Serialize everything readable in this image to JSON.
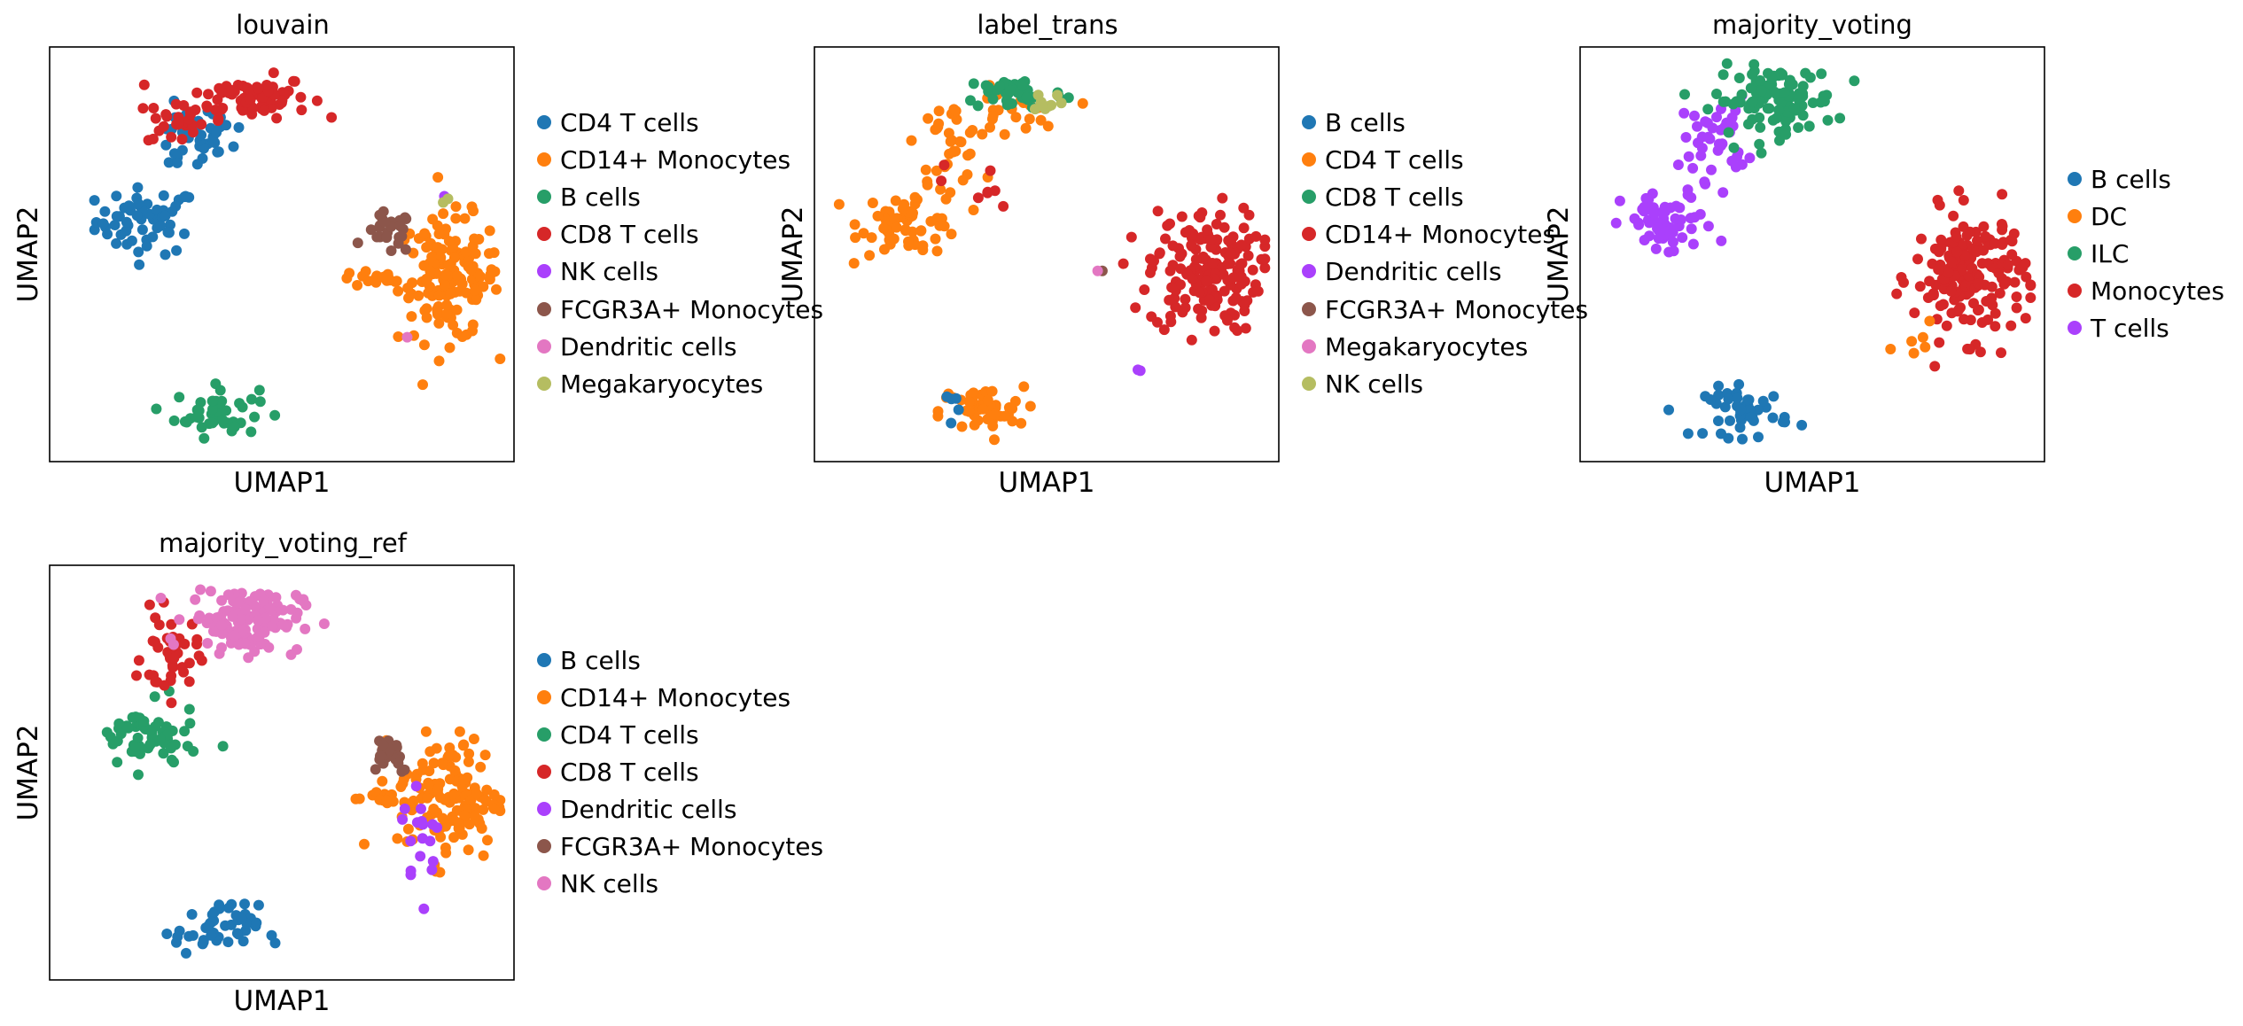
{
  "figure": {
    "panels": [
      {
        "title": "louvain",
        "xlabel": "UMAP1",
        "ylabel": "UMAP2",
        "legend": [
          {
            "label": "CD4 T cells",
            "color": "#1f77b4"
          },
          {
            "label": "CD14+ Monocytes",
            "color": "#ff7f0e"
          },
          {
            "label": "B cells",
            "color": "#279e68"
          },
          {
            "label": "CD8 T cells",
            "color": "#d62728"
          },
          {
            "label": "NK cells",
            "color": "#aa40fc"
          },
          {
            "label": "FCGR3A+ Monocytes",
            "color": "#8c564b"
          },
          {
            "label": "Dendritic cells",
            "color": "#e377c2"
          },
          {
            "label": "Megakaryocytes",
            "color": "#b5bd61"
          }
        ]
      },
      {
        "title": "label_trans",
        "xlabel": "UMAP1",
        "ylabel": "UMAP2",
        "legend": [
          {
            "label": "B cells",
            "color": "#1f77b4"
          },
          {
            "label": "CD4 T cells",
            "color": "#ff7f0e"
          },
          {
            "label": "CD8 T cells",
            "color": "#279e68"
          },
          {
            "label": "CD14+ Monocytes",
            "color": "#d62728"
          },
          {
            "label": "Dendritic cells",
            "color": "#aa40fc"
          },
          {
            "label": "FCGR3A+ Monocytes",
            "color": "#8c564b"
          },
          {
            "label": "Megakaryocytes",
            "color": "#e377c2"
          },
          {
            "label": "NK cells",
            "color": "#b5bd61"
          }
        ]
      },
      {
        "title": "majority_voting",
        "xlabel": "UMAP1",
        "ylabel": "UMAP2",
        "legend": [
          {
            "label": "B cells",
            "color": "#1f77b4"
          },
          {
            "label": "DC",
            "color": "#ff7f0e"
          },
          {
            "label": "ILC",
            "color": "#279e68"
          },
          {
            "label": "Monocytes",
            "color": "#d62728"
          },
          {
            "label": "T cells",
            "color": "#aa40fc"
          }
        ]
      },
      {
        "title": "majority_voting_ref",
        "xlabel": "UMAP1",
        "ylabel": "UMAP2",
        "legend": [
          {
            "label": "B cells",
            "color": "#1f77b4"
          },
          {
            "label": "CD14+ Monocytes",
            "color": "#ff7f0e"
          },
          {
            "label": "CD4 T cells",
            "color": "#279e68"
          },
          {
            "label": "CD8 T cells",
            "color": "#d62728"
          },
          {
            "label": "Dendritic cells",
            "color": "#aa40fc"
          },
          {
            "label": "FCGR3A+ Monocytes",
            "color": "#8c564b"
          },
          {
            "label": "NK cells",
            "color": "#e377c2"
          }
        ]
      }
    ]
  },
  "chart_data": [
    {
      "type": "scatter",
      "title": "louvain",
      "xlabel": "UMAP1",
      "ylabel": "UMAP2",
      "ticks_shown": false,
      "legend_position": "right",
      "clusters": [
        {
          "label": "CD4 T cells",
          "color_idx": 0,
          "count": 60,
          "cx": 0.21,
          "cy": 0.58,
          "sx": 0.055,
          "sy": 0.04
        },
        {
          "label": "CD4 T cells",
          "color_idx": 0,
          "count": 28,
          "cx": 0.29,
          "cy": 0.77,
          "sx": 0.035,
          "sy": 0.04
        },
        {
          "label": "CD4 T cells",
          "color_idx": 0,
          "count": 12,
          "cx": 0.37,
          "cy": 0.78,
          "sx": 0.025,
          "sy": 0.03
        },
        {
          "label": "CD8 T cells",
          "color_idx": 3,
          "count": 25,
          "cx": 0.27,
          "cy": 0.82,
          "sx": 0.03,
          "sy": 0.03
        },
        {
          "label": "CD8 T cells",
          "color_idx": 3,
          "count": 75,
          "cx": 0.43,
          "cy": 0.88,
          "sx": 0.065,
          "sy": 0.025
        },
        {
          "label": "B cells",
          "color_idx": 2,
          "count": 45,
          "cx": 0.36,
          "cy": 0.12,
          "sx": 0.045,
          "sy": 0.03
        },
        {
          "label": "CD14+ Monocytes",
          "color_idx": 1,
          "count": 150,
          "cx": 0.86,
          "cy": 0.44,
          "sx": 0.055,
          "sy": 0.075
        },
        {
          "label": "CD14+ Monocytes",
          "color_idx": 1,
          "count": 15,
          "cx": 0.7,
          "cy": 0.44,
          "sx": 0.04,
          "sy": 0.01
        },
        {
          "label": "FCGR3A+ Monocytes",
          "color_idx": 5,
          "count": 25,
          "cx": 0.73,
          "cy": 0.55,
          "sx": 0.025,
          "sy": 0.025
        },
        {
          "label": "NK cells",
          "color_idx": 4,
          "count": 1,
          "cx": 0.85,
          "cy": 0.64,
          "sx": 0.0,
          "sy": 0.0
        },
        {
          "label": "Dendritic cells",
          "color_idx": 6,
          "count": 1,
          "cx": 0.77,
          "cy": 0.3,
          "sx": 0.0,
          "sy": 0.0
        },
        {
          "label": "Megakaryocytes",
          "color_idx": 7,
          "count": 2,
          "cx": 0.85,
          "cy": 0.62,
          "sx": 0.01,
          "sy": 0.01
        }
      ]
    },
    {
      "type": "scatter",
      "title": "label_trans",
      "xlabel": "UMAP1",
      "ylabel": "UMAP2",
      "ticks_shown": false,
      "legend_position": "right",
      "clusters": [
        {
          "label": "CD4 T cells",
          "color_idx": 1,
          "count": 60,
          "cx": 0.21,
          "cy": 0.58,
          "sx": 0.055,
          "sy": 0.04
        },
        {
          "label": "CD4 T cells",
          "color_idx": 1,
          "count": 35,
          "cx": 0.29,
          "cy": 0.77,
          "sx": 0.035,
          "sy": 0.05
        },
        {
          "label": "CD4 T cells",
          "color_idx": 1,
          "count": 25,
          "cx": 0.42,
          "cy": 0.84,
          "sx": 0.05,
          "sy": 0.03
        },
        {
          "label": "CD4 T cells",
          "color_idx": 1,
          "count": 45,
          "cx": 0.36,
          "cy": 0.12,
          "sx": 0.045,
          "sy": 0.03
        },
        {
          "label": "CD8 T cells",
          "color_idx": 2,
          "count": 45,
          "cx": 0.43,
          "cy": 0.89,
          "sx": 0.055,
          "sy": 0.02
        },
        {
          "label": "NK cells",
          "color_idx": 7,
          "count": 10,
          "cx": 0.5,
          "cy": 0.87,
          "sx": 0.02,
          "sy": 0.015
        },
        {
          "label": "B cells",
          "color_idx": 0,
          "count": 5,
          "cx": 0.3,
          "cy": 0.15,
          "sx": 0.03,
          "sy": 0.02
        },
        {
          "label": "CD14+ Monocytes",
          "color_idx": 3,
          "count": 175,
          "cx": 0.84,
          "cy": 0.46,
          "sx": 0.06,
          "sy": 0.075
        },
        {
          "label": "CD14+ Monocytes",
          "color_idx": 3,
          "count": 8,
          "cx": 0.36,
          "cy": 0.66,
          "sx": 0.04,
          "sy": 0.04
        },
        {
          "label": "FCGR3A+ Monocytes",
          "color_idx": 5,
          "count": 1,
          "cx": 0.62,
          "cy": 0.46,
          "sx": 0.0,
          "sy": 0.0
        },
        {
          "label": "Megakaryocytes",
          "color_idx": 6,
          "count": 1,
          "cx": 0.61,
          "cy": 0.46,
          "sx": 0.0,
          "sy": 0.0
        },
        {
          "label": "Dendritic cells",
          "color_idx": 4,
          "count": 2,
          "cx": 0.7,
          "cy": 0.22,
          "sx": 0.005,
          "sy": 0.005
        }
      ]
    },
    {
      "type": "scatter",
      "title": "majority_voting",
      "xlabel": "UMAP1",
      "ylabel": "UMAP2",
      "ticks_shown": false,
      "legend_position": "right",
      "clusters": [
        {
          "label": "T cells",
          "color_idx": 4,
          "count": 60,
          "cx": 0.19,
          "cy": 0.57,
          "sx": 0.05,
          "sy": 0.04
        },
        {
          "label": "T cells",
          "color_idx": 4,
          "count": 40,
          "cx": 0.29,
          "cy": 0.78,
          "sx": 0.035,
          "sy": 0.05
        },
        {
          "label": "ILC",
          "color_idx": 2,
          "count": 110,
          "cx": 0.42,
          "cy": 0.87,
          "sx": 0.065,
          "sy": 0.04
        },
        {
          "label": "B cells",
          "color_idx": 0,
          "count": 45,
          "cx": 0.36,
          "cy": 0.12,
          "sx": 0.045,
          "sy": 0.03
        },
        {
          "label": "Monocytes",
          "color_idx": 3,
          "count": 175,
          "cx": 0.84,
          "cy": 0.45,
          "sx": 0.06,
          "sy": 0.075
        },
        {
          "label": "DC",
          "color_idx": 1,
          "count": 6,
          "cx": 0.72,
          "cy": 0.27,
          "sx": 0.02,
          "sy": 0.03
        }
      ]
    },
    {
      "type": "scatter",
      "title": "majority_voting_ref",
      "xlabel": "UMAP1",
      "ylabel": "UMAP2",
      "ticks_shown": false,
      "legend_position": "right",
      "clusters": [
        {
          "label": "CD4 T cells",
          "color_idx": 2,
          "count": 60,
          "cx": 0.21,
          "cy": 0.58,
          "sx": 0.055,
          "sy": 0.04
        },
        {
          "label": "CD8 T cells",
          "color_idx": 3,
          "count": 40,
          "cx": 0.26,
          "cy": 0.78,
          "sx": 0.03,
          "sy": 0.05
        },
        {
          "label": "NK cells",
          "color_idx": 6,
          "count": 130,
          "cx": 0.42,
          "cy": 0.87,
          "sx": 0.06,
          "sy": 0.04
        },
        {
          "label": "B cells",
          "color_idx": 0,
          "count": 45,
          "cx": 0.36,
          "cy": 0.12,
          "sx": 0.045,
          "sy": 0.03
        },
        {
          "label": "CD14+ Monocytes",
          "color_idx": 1,
          "count": 140,
          "cx": 0.86,
          "cy": 0.44,
          "sx": 0.055,
          "sy": 0.075
        },
        {
          "label": "CD14+ Monocytes",
          "color_idx": 1,
          "count": 12,
          "cx": 0.7,
          "cy": 0.44,
          "sx": 0.04,
          "sy": 0.01
        },
        {
          "label": "FCGR3A+ Monocytes",
          "color_idx": 5,
          "count": 25,
          "cx": 0.73,
          "cy": 0.55,
          "sx": 0.025,
          "sy": 0.025
        },
        {
          "label": "Dendritic cells",
          "color_idx": 4,
          "count": 18,
          "cx": 0.8,
          "cy": 0.35,
          "sx": 0.02,
          "sy": 0.07
        }
      ]
    }
  ]
}
